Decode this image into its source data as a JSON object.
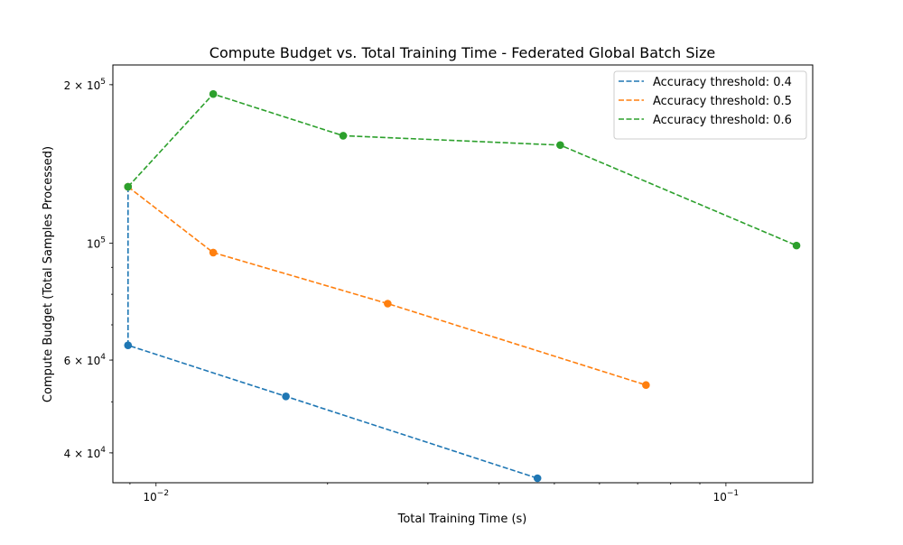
{
  "chart_data": {
    "type": "line",
    "title": "Compute Budget vs. Total Training Time - Federated Global Batch Size",
    "xlabel": "Total Training Time (s)",
    "ylabel": "Compute Budget (Total Samples Processed)",
    "xscale": "log",
    "yscale": "log",
    "xlim": [
      0.0084,
      0.142
    ],
    "ylim": [
      35100,
      218000
    ],
    "x_ticks": [
      {
        "value": 0.01,
        "base": "10",
        "exp": "−2"
      },
      {
        "value": 0.1,
        "base": "10",
        "exp": "−1"
      }
    ],
    "y_ticks": [
      {
        "value": 40000,
        "base": "4 × 10",
        "exp": "4"
      },
      {
        "value": 60000,
        "base": "6 × 10",
        "exp": "4"
      },
      {
        "value": 100000,
        "base": "10",
        "exp": "5"
      },
      {
        "value": 200000,
        "base": "2 × 10",
        "exp": "5"
      }
    ],
    "grid": false,
    "legend_position": "top-right",
    "series": [
      {
        "name": "Accuracy threshold: 0.4",
        "color": "#1f77b4",
        "x": [
          0.00893,
          0.00893,
          0.0169,
          0.0467
        ],
        "y": [
          128000,
          64000,
          51200,
          35800
        ]
      },
      {
        "name": "Accuracy threshold: 0.5",
        "color": "#ff7f0e",
        "x": [
          0.00893,
          0.0126,
          0.0255,
          0.0724
        ],
        "y": [
          128000,
          96000,
          76800,
          53800
        ]
      },
      {
        "name": "Accuracy threshold: 0.6",
        "color": "#2ca02c",
        "x": [
          0.00893,
          0.0126,
          0.0213,
          0.0512,
          0.133
        ],
        "y": [
          128000,
          192000,
          160000,
          153600,
          99000
        ]
      }
    ]
  }
}
